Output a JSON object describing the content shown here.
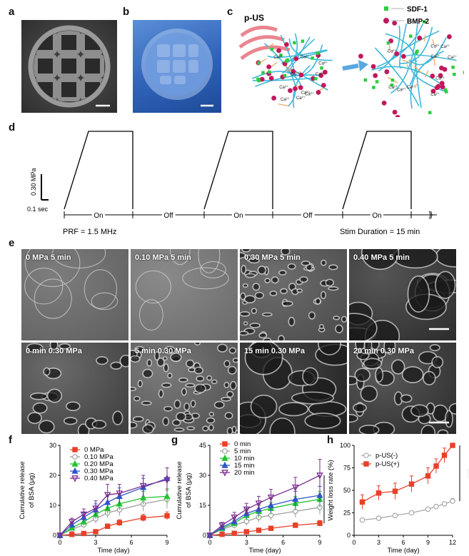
{
  "panels": {
    "a": "a",
    "b": "b",
    "c": "c",
    "d": "d",
    "e": "e",
    "f": "f",
    "g": "g",
    "h": "h"
  },
  "panel_c": {
    "pus_label": "p-US",
    "legend_sdf": "SDF-1",
    "legend_bmp": "BMP-2",
    "ion_label": "Ca²⁺",
    "sdf_color": "#2ecc40",
    "bmp_color": "#c2185b",
    "fiber_color": "#3fb8d8"
  },
  "panel_d": {
    "scale_value": "0.30 MPa",
    "scale_time": "0.1 sec",
    "segments": [
      "On",
      "Off",
      "On",
      "Off",
      "On"
    ],
    "prf": "PRF = 1.5 MHz",
    "duration": "Stim Duration = 15 min"
  },
  "panel_e": {
    "row1": [
      "0 MPa  5 min",
      "0.10 MPa 5 min",
      "0.30 MPa 5 min",
      "0.40 MPa 5 min"
    ],
    "row2": [
      "0 min 0.30 MPa",
      "5 min 0.30 MPa",
      "15 min 0.30 MPa",
      "20 min 0.30 MPa"
    ]
  },
  "chart_data": [
    {
      "type": "line",
      "panel": "f",
      "xlabel": "Time (day)",
      "ylabel_line1": "Cumulative release",
      "ylabel_line2": "of BSA  (μg)",
      "xticks": [
        0,
        3,
        6,
        9
      ],
      "yticks": [
        0,
        10,
        20,
        30
      ],
      "xlim": [
        0,
        9
      ],
      "ylim": [
        0,
        30
      ],
      "x": [
        0,
        1,
        2,
        3,
        4,
        5,
        7,
        9
      ],
      "legend_position": "top-left",
      "series": [
        {
          "name": "0 MPa",
          "color": "#e8402a",
          "marker": "square",
          "values": [
            0,
            0.3,
            0.6,
            1.2,
            3.0,
            4.2,
            5.8,
            6.5
          ],
          "errors": [
            0,
            0.3,
            0.4,
            0.5,
            0.8,
            1.0,
            1.2,
            1.3
          ]
        },
        {
          "name": "0.10 MPa",
          "color": "#9e9e9e",
          "marker": "circle",
          "values": [
            0,
            2.0,
            3.5,
            5.5,
            7.5,
            8.5,
            10.5,
            12.0
          ],
          "errors": [
            0,
            0.8,
            1.0,
            1.5,
            1.8,
            2.0,
            2.5,
            3.0
          ]
        },
        {
          "name": "0.20 MPa",
          "color": "#22c32e",
          "marker": "triangle-up",
          "values": [
            0,
            2.5,
            4.5,
            7.0,
            9.0,
            10.5,
            12.5,
            13.0
          ],
          "errors": [
            0,
            0.8,
            1.2,
            1.5,
            1.8,
            2.0,
            2.2,
            2.5
          ]
        },
        {
          "name": "0.30 MPa",
          "color": "#2d57c8",
          "marker": "triangle-up",
          "values": [
            0,
            3.5,
            6.0,
            8.5,
            11.0,
            13.0,
            16.0,
            19.0
          ],
          "errors": [
            0,
            1.0,
            1.5,
            2.0,
            2.5,
            2.8,
            3.0,
            3.5
          ]
        },
        {
          "name": "0.40 MPa",
          "color": "#7b2d8e",
          "marker": "triangle-down",
          "values": [
            0,
            4.5,
            7.0,
            9.0,
            13.5,
            14.0,
            16.5,
            18.5
          ],
          "errors": [
            0,
            1.2,
            1.8,
            2.5,
            3.5,
            3.0,
            3.5,
            4.0
          ]
        }
      ]
    },
    {
      "type": "line",
      "panel": "g",
      "xlabel": "Time (day)",
      "ylabel_line1": "Cumulative release",
      "ylabel_line2": "of BSA  (μg)",
      "xticks": [
        0,
        3,
        6,
        9
      ],
      "yticks": [
        0,
        15,
        30,
        45
      ],
      "xlim": [
        0,
        9
      ],
      "ylim": [
        0,
        45
      ],
      "x": [
        0,
        1,
        2,
        3,
        4,
        5,
        7,
        9
      ],
      "legend_position": "top-left",
      "significance": "*",
      "series": [
        {
          "name": "0 min",
          "color": "#e8402a",
          "marker": "square",
          "values": [
            0,
            0.5,
            1.0,
            1.8,
            2.5,
            3.5,
            5.0,
            6.0
          ],
          "errors": [
            0,
            0.3,
            0.5,
            0.6,
            0.8,
            1.0,
            1.2,
            1.4
          ]
        },
        {
          "name": "5 min",
          "color": "#9e9e9e",
          "marker": "circle",
          "values": [
            0,
            3.0,
            5.0,
            7.0,
            9.0,
            10.0,
            12.0,
            14.0
          ],
          "errors": [
            0,
            1.0,
            1.5,
            2.0,
            2.5,
            2.5,
            3.0,
            3.5
          ]
        },
        {
          "name": "10 min",
          "color": "#22c32e",
          "marker": "triangle-up",
          "values": [
            0,
            3.5,
            6.0,
            10.0,
            12.0,
            13.5,
            16.0,
            18.0
          ],
          "errors": [
            0,
            1.0,
            1.5,
            2.5,
            3.0,
            3.0,
            3.5,
            4.0
          ]
        },
        {
          "name": "15 min",
          "color": "#2d57c8",
          "marker": "triangle-up",
          "values": [
            0,
            4.0,
            7.0,
            11.0,
            13.0,
            15.0,
            18.0,
            20.0
          ],
          "errors": [
            0,
            1.2,
            2.0,
            2.5,
            3.0,
            3.5,
            4.0,
            4.5
          ]
        },
        {
          "name": "20 min",
          "color": "#7b2d8e",
          "marker": "triangle-down",
          "values": [
            0,
            5.0,
            9.0,
            13.0,
            16.0,
            19.0,
            24.0,
            30.0
          ],
          "errors": [
            0,
            1.5,
            2.5,
            3.0,
            3.5,
            4.0,
            5.0,
            8.0
          ]
        }
      ]
    },
    {
      "type": "line",
      "panel": "h",
      "xlabel": "Time (day)",
      "ylabel_line1": "Weight loss rate (%)",
      "ylabel_line2": "",
      "xticks": [
        0,
        3,
        6,
        9,
        12
      ],
      "yticks": [
        0,
        25,
        50,
        75,
        100
      ],
      "xlim": [
        0,
        12
      ],
      "ylim": [
        0,
        100
      ],
      "x": [
        1,
        3,
        5,
        7,
        9,
        10,
        11,
        12
      ],
      "legend_position": "top-left",
      "significance": "***",
      "series": [
        {
          "name": "p-US(-)",
          "color": "#a9a9a9",
          "marker": "circle",
          "values": [
            17,
            19,
            22,
            25,
            29,
            32,
            35,
            38
          ],
          "errors": [
            2,
            2,
            2,
            2,
            2,
            2,
            2,
            3
          ]
        },
        {
          "name": "p-US(+)",
          "color": "#e8402a",
          "marker": "square",
          "values": [
            37,
            47,
            49,
            57,
            66,
            77,
            89,
            100
          ],
          "errors": [
            8,
            8,
            9,
            9,
            9,
            8,
            8,
            2
          ]
        }
      ]
    }
  ]
}
